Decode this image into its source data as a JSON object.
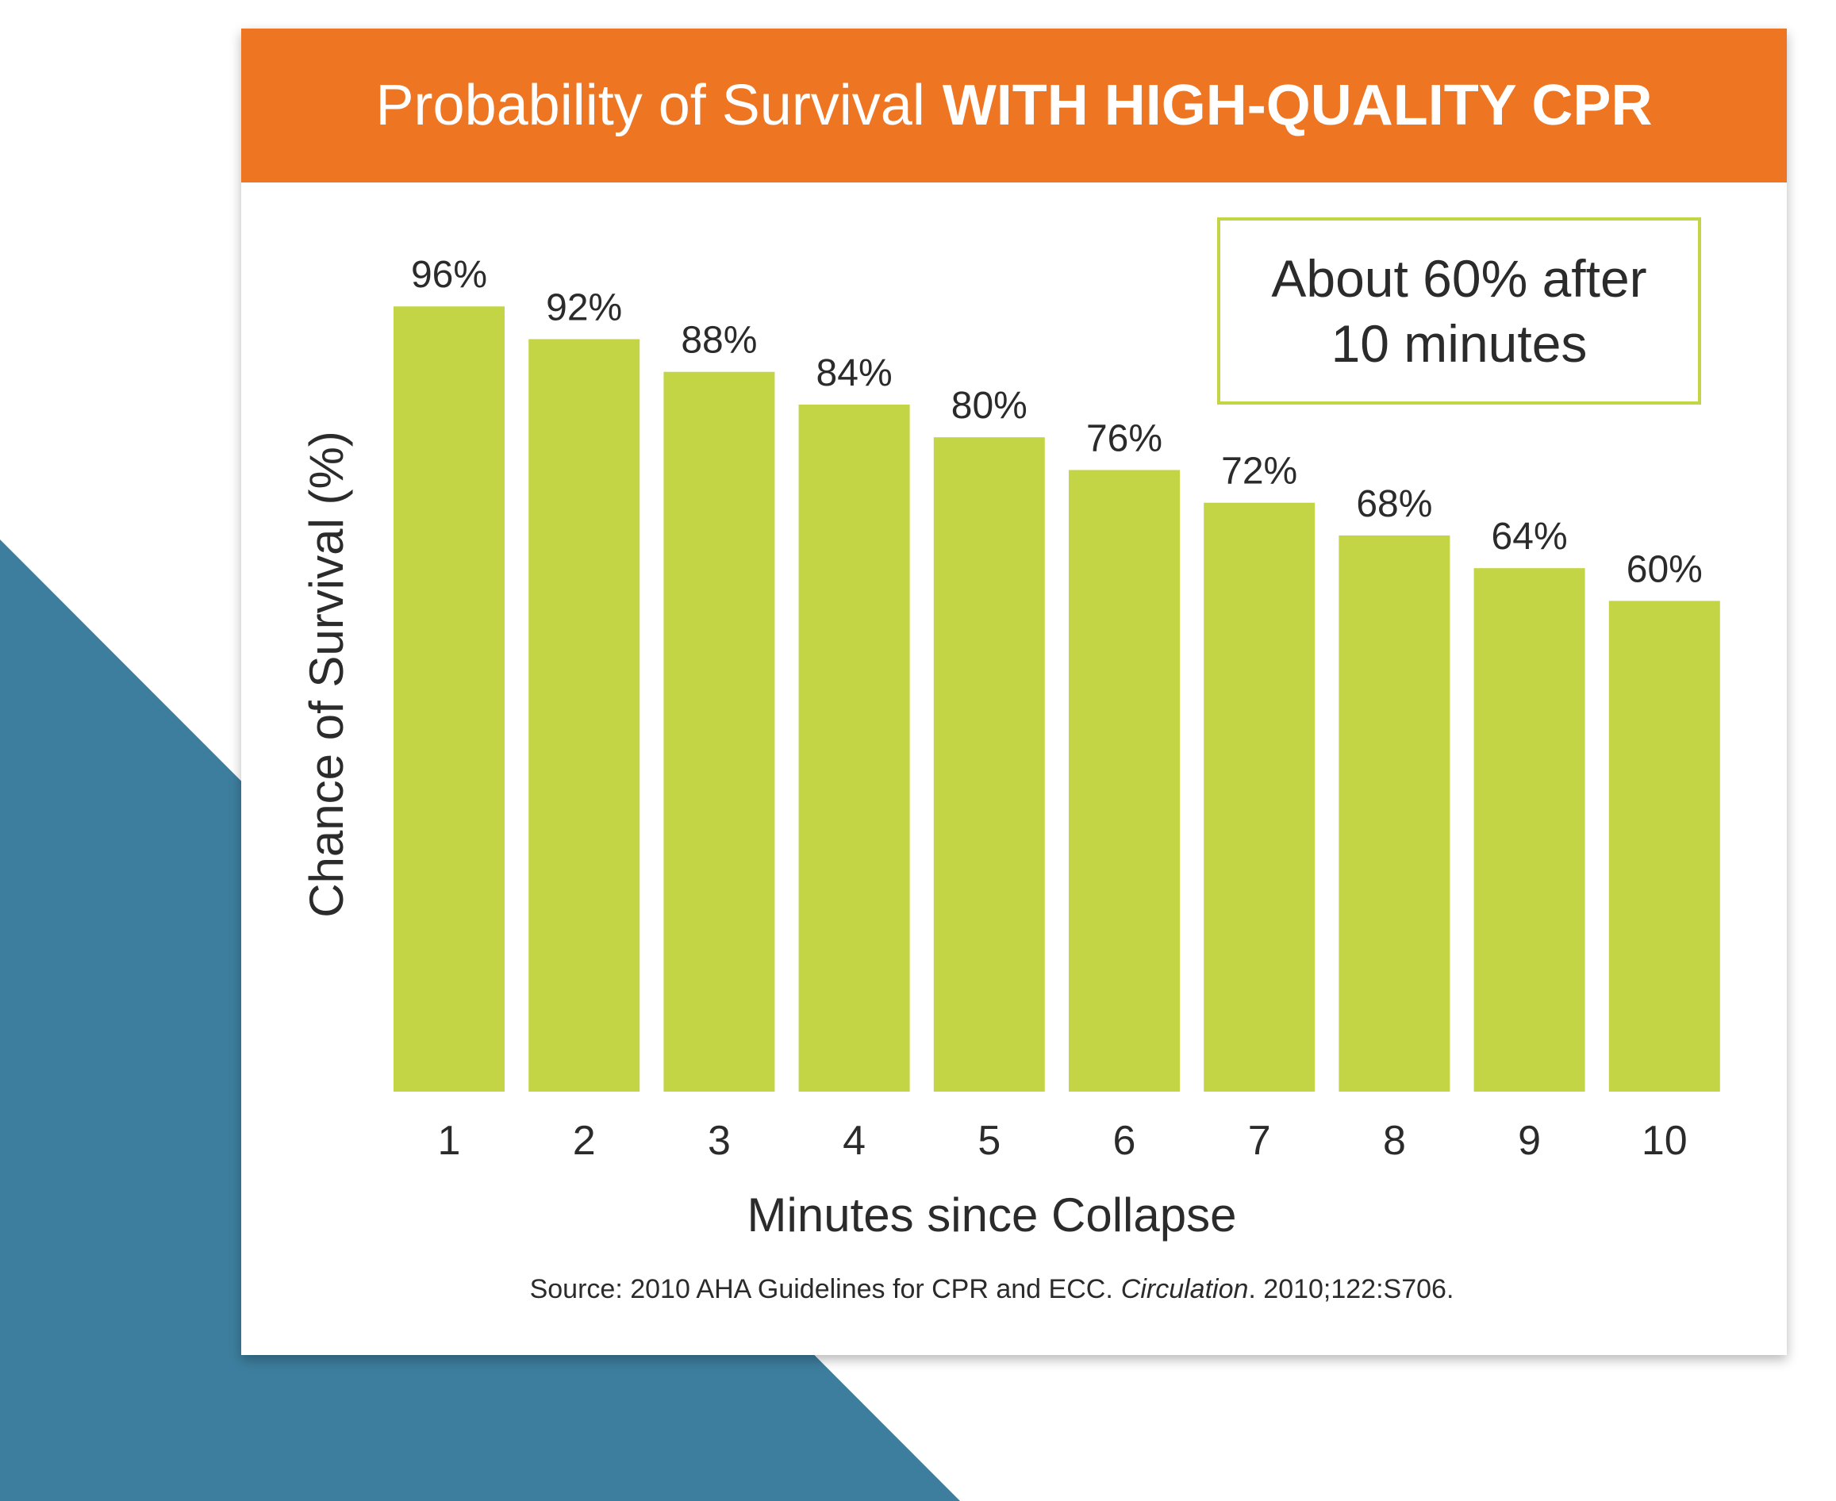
{
  "colors": {
    "header": "#ee7623",
    "bar": "#c3d545",
    "background_shape": "#3d7e9e",
    "text": "#2b2b2b"
  },
  "header": {
    "title_light": "Probability of Survival",
    "title_bold": "WITH HIGH-QUALITY CPR"
  },
  "callout": {
    "text": "About 60% after 10 minutes"
  },
  "source": {
    "prefix": "Source: 2010 AHA Guidelines for CPR and ECC.",
    "journal": "Circulation",
    "suffix": ". 2010;122:S706."
  },
  "chart_data": {
    "type": "bar",
    "categories": [
      "1",
      "2",
      "3",
      "4",
      "5",
      "6",
      "7",
      "8",
      "9",
      "10"
    ],
    "values": [
      96,
      92,
      88,
      84,
      80,
      76,
      72,
      68,
      64,
      60
    ],
    "data_labels": [
      "96%",
      "92%",
      "88%",
      "84%",
      "80%",
      "76%",
      "72%",
      "68%",
      "64%",
      "60%"
    ],
    "xlabel": "Minutes since Collapse",
    "ylabel": "Chance of Survival (%)",
    "ylim": [
      0,
      100
    ],
    "grid": false,
    "legend": "none"
  }
}
